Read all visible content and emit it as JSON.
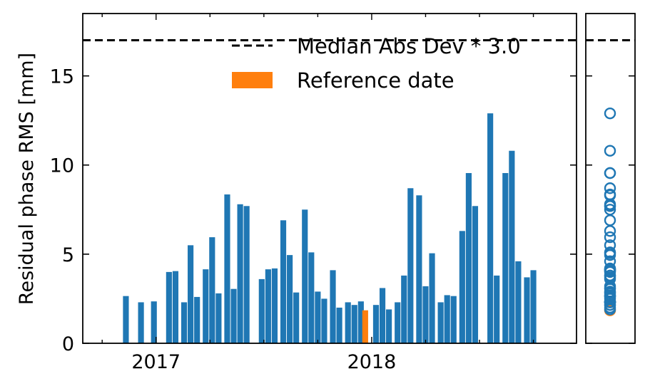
{
  "chart_data": {
    "type": "bar",
    "ylabel": "Residual phase RMS [mm]",
    "xlabel": "",
    "ylim": [
      0,
      18.5
    ],
    "xlim": [
      2016.66,
      2018.95
    ],
    "y_ticks": [
      0,
      5,
      10,
      15
    ],
    "x_tick_labels": [
      {
        "label": "2017",
        "value": 2017.0
      },
      {
        "label": "2018",
        "value": 2018.0
      }
    ],
    "threshold": {
      "name": "Median Abs Dev * 3.0",
      "value": 17.0,
      "style": "dashed"
    },
    "bar_width": 0.027,
    "reference": {
      "name": "Reference date",
      "date": 2017.97,
      "value": 1.85
    },
    "colors": {
      "bars": "#1f77b4",
      "reference": "#ff7f0e",
      "threshold": "#000000"
    },
    "x": [
      2016.86,
      2016.93,
      2016.99,
      2017.06,
      2017.09,
      2017.13,
      2017.16,
      2017.19,
      2017.23,
      2017.26,
      2017.29,
      2017.33,
      2017.36,
      2017.39,
      2017.42,
      2017.49,
      2017.52,
      2017.55,
      2017.59,
      2017.62,
      2017.65,
      2017.69,
      2017.72,
      2017.75,
      2017.78,
      2017.82,
      2017.85,
      2017.89,
      2017.92,
      2017.95,
      2017.97,
      2018.02,
      2018.05,
      2018.08,
      2018.12,
      2018.15,
      2018.18,
      2018.22,
      2018.25,
      2018.28,
      2018.32,
      2018.35,
      2018.38,
      2018.42,
      2018.45,
      2018.48,
      2018.55,
      2018.58,
      2018.62,
      2018.65,
      2018.68,
      2018.72,
      2018.75
    ],
    "values": [
      2.65,
      2.3,
      2.35,
      4.0,
      4.05,
      2.3,
      5.5,
      2.6,
      4.15,
      5.95,
      2.8,
      8.35,
      3.05,
      7.8,
      7.7,
      3.6,
      4.15,
      4.2,
      6.9,
      4.95,
      2.85,
      7.5,
      5.1,
      2.9,
      2.5,
      4.1,
      2.0,
      2.3,
      2.15,
      2.35,
      1.85,
      2.15,
      3.1,
      1.9,
      2.3,
      3.8,
      8.7,
      8.3,
      3.2,
      5.05,
      2.3,
      2.7,
      2.65,
      6.3,
      9.55,
      7.7,
      12.9,
      3.8,
      9.55,
      10.8,
      4.6,
      3.7,
      4.1
    ]
  }
}
